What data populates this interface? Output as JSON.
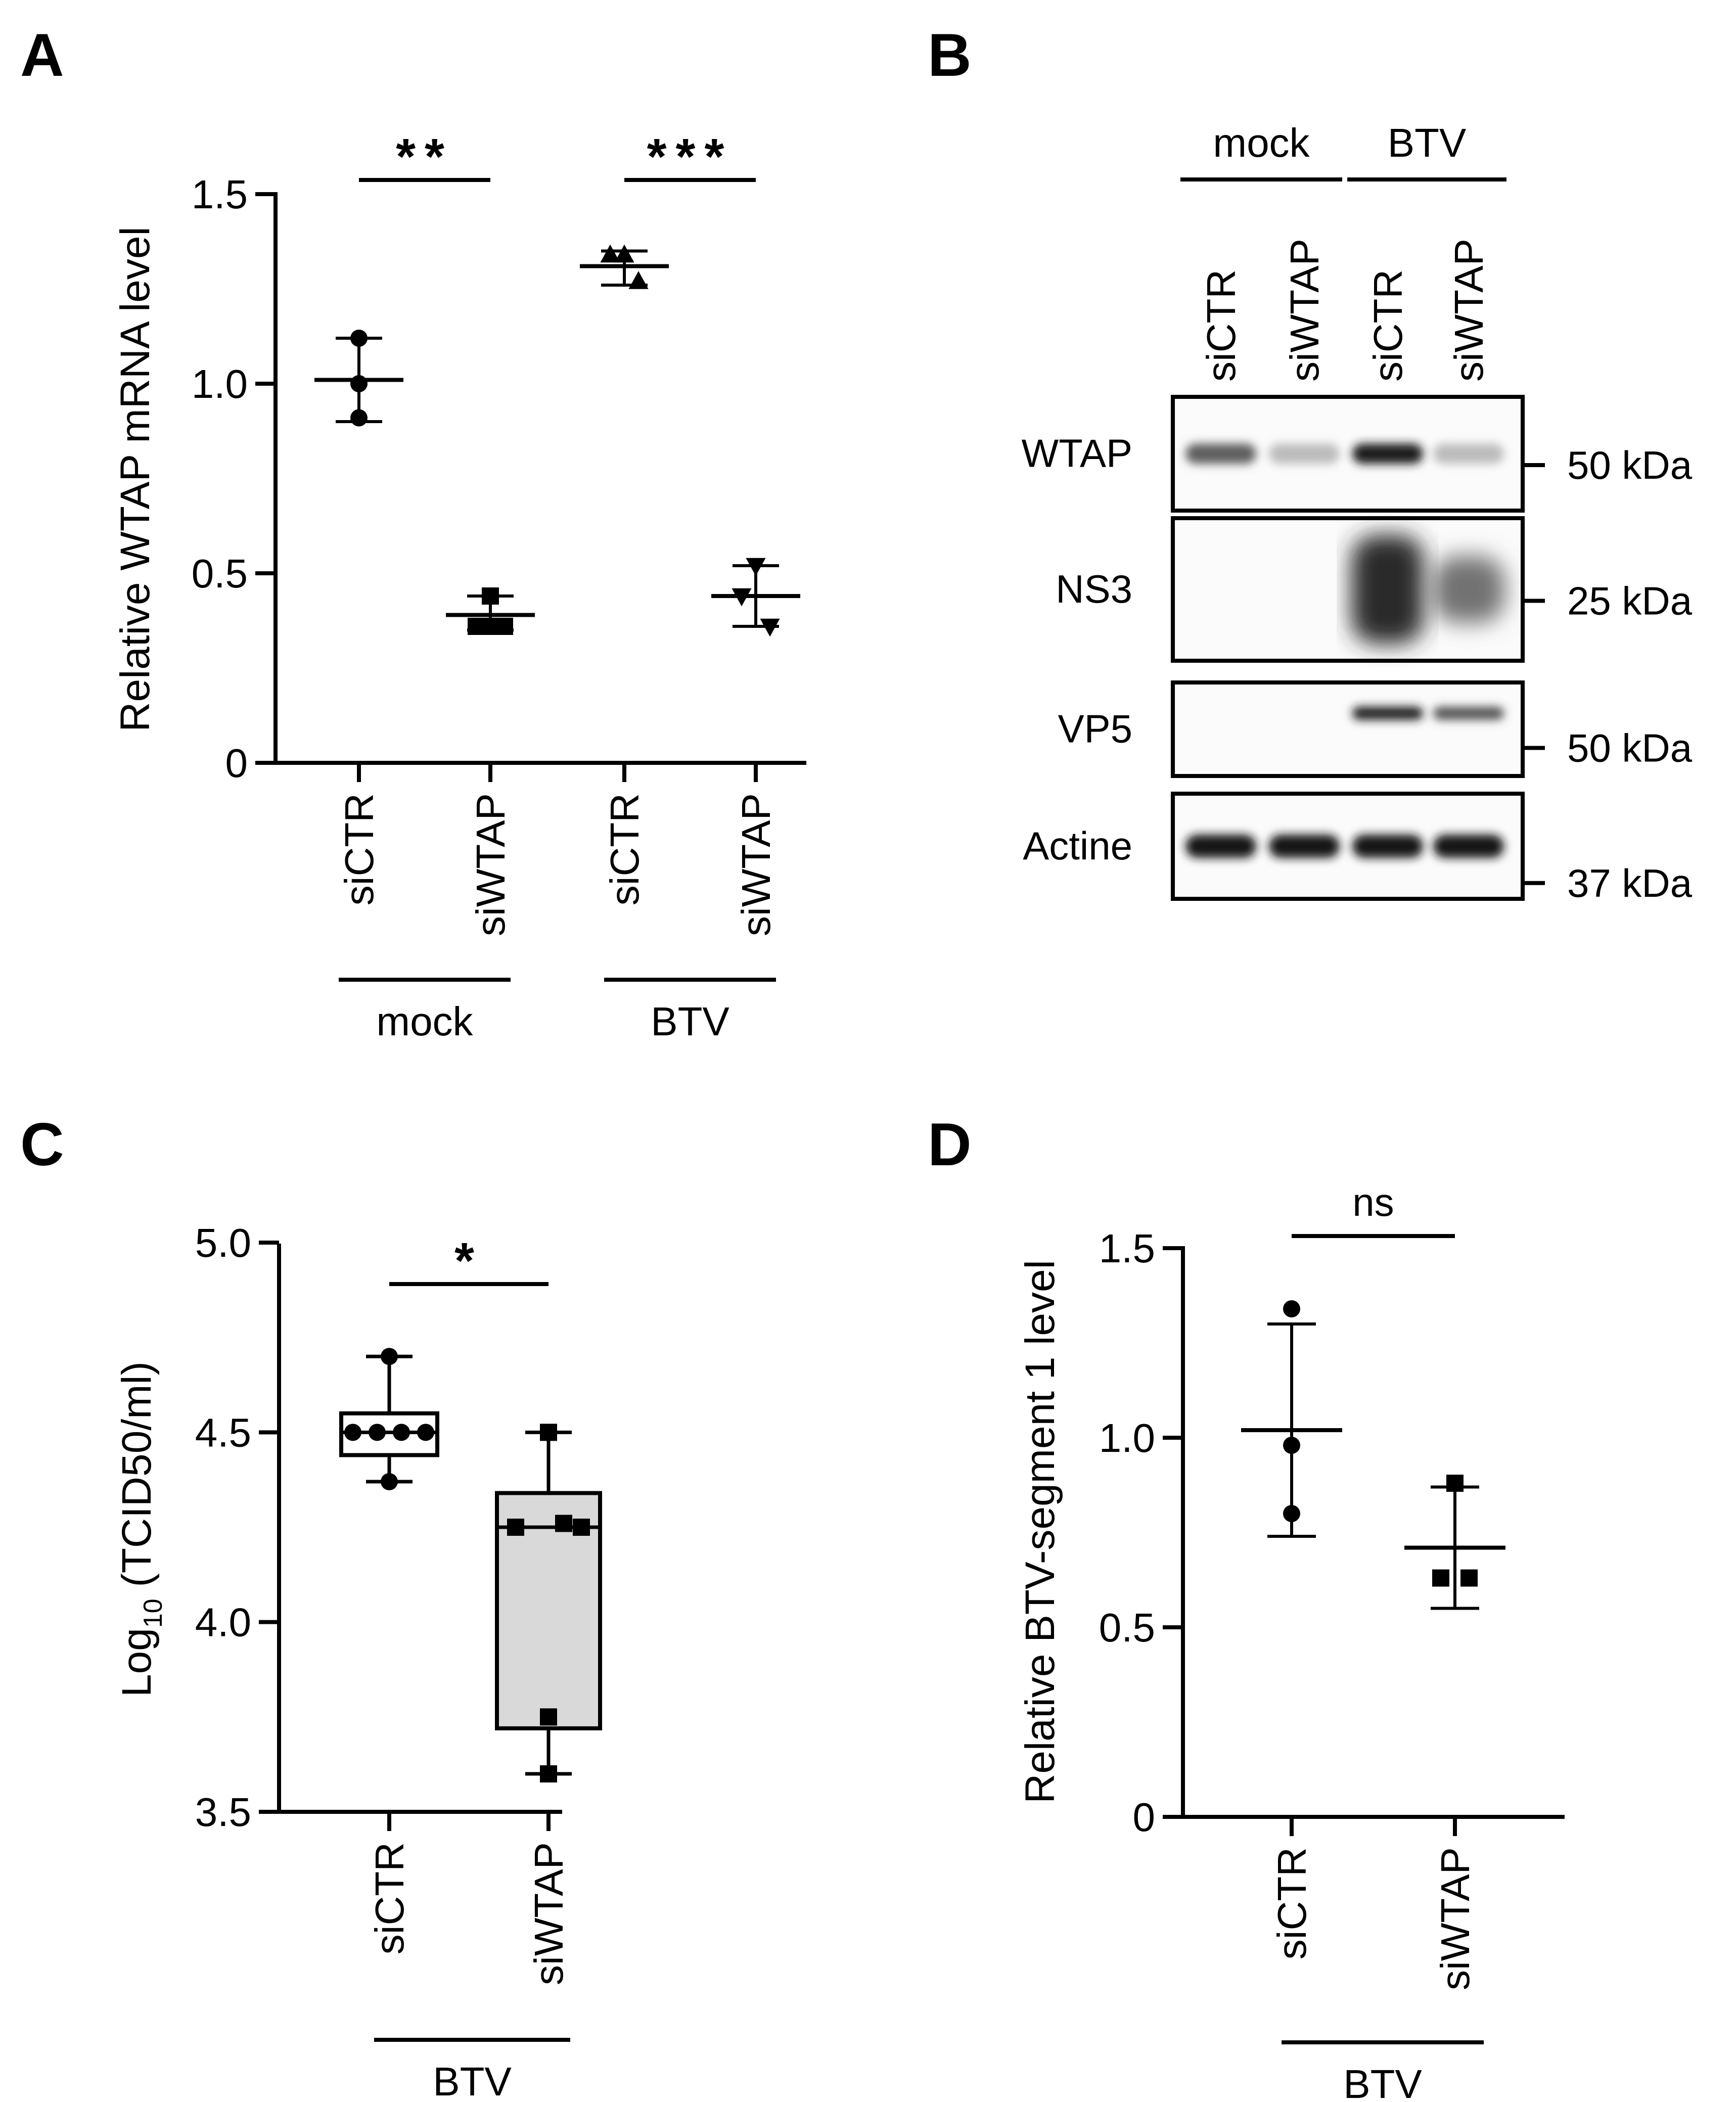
{
  "figure": {
    "panels": [
      "A",
      "B",
      "C",
      "D"
    ]
  },
  "chart_data": [
    {
      "panel": "A",
      "type": "scatter",
      "ylabel": "Relative WTAP mRNA level",
      "ylim": [
        0,
        1.5
      ],
      "yticks": [
        "0",
        "0.5",
        "1.0",
        "1.5"
      ],
      "categories": [
        "siCTR",
        "siWTAP",
        "siCTR",
        "siWTAP"
      ],
      "groups": [
        {
          "label": "mock",
          "members": [
            0,
            1
          ]
        },
        {
          "label": "BTV",
          "members": [
            2,
            3
          ]
        }
      ],
      "series": [
        {
          "name": "mock siCTR",
          "marker": "circle",
          "points": [
            1.12,
            1.0,
            0.91
          ],
          "mean": 1.01,
          "err_low": 0.9,
          "err_high": 1.12
        },
        {
          "name": "mock siWTAP",
          "marker": "square",
          "points": [
            0.44,
            0.36,
            0.36,
            0.36
          ],
          "mean": 0.39,
          "err_low": 0.35,
          "err_high": 0.44
        },
        {
          "name": "BTV siCTR",
          "marker": "triangle-up",
          "points": [
            1.34,
            1.34,
            1.27
          ],
          "mean": 1.31,
          "err_low": 1.26,
          "err_high": 1.35
        },
        {
          "name": "BTV siWTAP",
          "marker": "triangle-down",
          "points": [
            0.52,
            0.44,
            0.36
          ],
          "mean": 0.44,
          "err_low": 0.36,
          "err_high": 0.52
        }
      ],
      "significance": [
        {
          "from": 0,
          "to": 1,
          "label": "**"
        },
        {
          "from": 2,
          "to": 3,
          "label": "***"
        }
      ]
    },
    {
      "panel": "C",
      "type": "box",
      "ylabel_main": "Log",
      "ylabel_sub": "10",
      "ylabel_rest": " (TCID50/ml)",
      "ylim": [
        3.5,
        5.0
      ],
      "yticks": [
        "3.5",
        "4.0",
        "4.5",
        "5.0"
      ],
      "categories": [
        "siCTR",
        "siWTAP"
      ],
      "group_label": "BTV",
      "boxes": [
        {
          "name": "siCTR",
          "marker": "circle",
          "fill": "#ffffff",
          "min": 4.37,
          "q1": 4.44,
          "median": 4.5,
          "q3": 4.55,
          "max": 4.7,
          "points": [
            4.7,
            4.5,
            4.5,
            4.5,
            4.5,
            4.37
          ]
        },
        {
          "name": "siWTAP",
          "marker": "square",
          "fill": "#d9d9d9",
          "min": 3.6,
          "q1": 3.72,
          "median": 4.25,
          "q3": 4.34,
          "max": 4.5,
          "points": [
            4.5,
            4.26,
            4.25,
            4.25,
            3.75,
            3.6
          ]
        }
      ],
      "significance": [
        {
          "from": 0,
          "to": 1,
          "label": "*"
        }
      ]
    },
    {
      "panel": "D",
      "type": "scatter",
      "ylabel": "Relative BTV-segment 1 level",
      "ylim": [
        0,
        1.5
      ],
      "yticks": [
        "0",
        "0.5",
        "1.0",
        "1.5"
      ],
      "categories": [
        "siCTR",
        "siWTAP"
      ],
      "group_label": "BTV",
      "series": [
        {
          "name": "siCTR",
          "marker": "circle",
          "points": [
            1.34,
            0.98,
            0.8
          ],
          "mean": 1.02,
          "err_low": 0.74,
          "err_high": 1.3
        },
        {
          "name": "siWTAP",
          "marker": "square",
          "points": [
            0.88,
            0.63,
            0.63
          ],
          "mean": 0.71,
          "err_low": 0.55,
          "err_high": 0.87
        }
      ],
      "significance": [
        {
          "from": 0,
          "to": 1,
          "label": "ns"
        }
      ]
    }
  ],
  "western_blot": {
    "panel": "B",
    "groups": [
      {
        "label": "mock",
        "lanes": [
          0,
          1
        ]
      },
      {
        "label": "BTV",
        "lanes": [
          2,
          3
        ]
      }
    ],
    "lanes": [
      "siCTR",
      "siWTAP",
      "siCTR",
      "siWTAP"
    ],
    "bands": [
      {
        "label": "WTAP",
        "marker": "50 kDa",
        "intensity": [
          0.65,
          0.2,
          0.95,
          0.2
        ]
      },
      {
        "label": "NS3",
        "marker": "25 kDa",
        "intensity": [
          0,
          0,
          0.9,
          0.55
        ]
      },
      {
        "label": "VP5",
        "marker": "50 kDa",
        "intensity": [
          0,
          0,
          0.95,
          0.7
        ]
      },
      {
        "label": "Actine",
        "marker": "37 kDa",
        "intensity": [
          1,
          1,
          1,
          1
        ]
      }
    ]
  }
}
